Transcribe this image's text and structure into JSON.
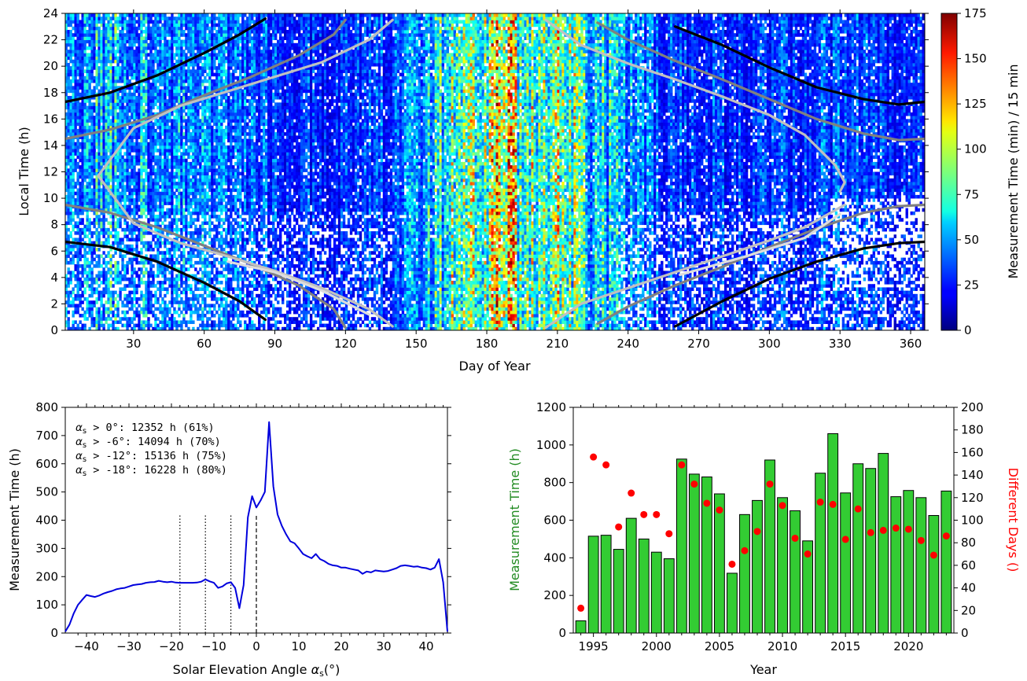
{
  "chart_data": [
    {
      "type": "heatmap",
      "xlabel": "Day of Year",
      "ylabel": "Local Time (h)",
      "xlim": [
        1,
        366
      ],
      "ylim": [
        0,
        24
      ],
      "xticks": [
        30,
        60,
        90,
        120,
        150,
        180,
        210,
        240,
        270,
        300,
        330,
        360
      ],
      "yticks": [
        0,
        2,
        4,
        6,
        8,
        10,
        12,
        14,
        16,
        18,
        20,
        22,
        24
      ],
      "colorbar": {
        "label": "Measurement Time (min) / 15 min",
        "range": [
          0,
          175
        ],
        "ticks": [
          0,
          25,
          50,
          75,
          100,
          125,
          150,
          175
        ],
        "colormap": "jet"
      },
      "activity_profile": {
        "day": [
          1,
          20,
          40,
          60,
          75,
          90,
          110,
          130,
          145,
          155,
          165,
          175,
          182,
          190,
          200,
          210,
          220,
          230,
          245,
          265,
          290,
          315,
          335,
          350,
          366
        ],
        "level": [
          45,
          55,
          42,
          45,
          40,
          30,
          28,
          30,
          35,
          62,
          70,
          75,
          100,
          95,
          78,
          82,
          70,
          55,
          38,
          30,
          28,
          32,
          33,
          28,
          25
        ]
      },
      "curves": [
        {
          "name": "sunset 0",
          "color": "#000000",
          "day": [
            1,
            20,
            40,
            60,
            75,
            86
          ],
          "hour": [
            17.3,
            18.0,
            19.3,
            21.0,
            22.4,
            23.6
          ]
        },
        {
          "name": "sunrise 0",
          "color": "#000000",
          "day": [
            1,
            20,
            40,
            60,
            75,
            86
          ],
          "hour": [
            6.7,
            6.3,
            5.2,
            3.6,
            2.2,
            0.8
          ]
        },
        {
          "name": "sunset 0 autumn",
          "color": "#000000",
          "day": [
            260,
            280,
            300,
            320,
            340,
            355,
            366
          ],
          "hour": [
            23.0,
            21.6,
            19.9,
            18.4,
            17.5,
            17.1,
            17.3
          ]
        },
        {
          "name": "sunrise 0 autumn",
          "color": "#000000",
          "day": [
            260,
            280,
            300,
            320,
            340,
            355,
            366
          ],
          "hour": [
            0.3,
            2.2,
            3.9,
            5.2,
            6.2,
            6.6,
            6.7
          ]
        },
        {
          "name": "sunset -6",
          "color": "#808080",
          "day": [
            1,
            20,
            40,
            60,
            80,
            100,
            115,
            120
          ],
          "hour": [
            14.5,
            15.2,
            16.3,
            17.8,
            19.2,
            20.8,
            22.4,
            23.5
          ]
        },
        {
          "name": "sunrise -6",
          "color": "#808080",
          "day": [
            1,
            20,
            40,
            60,
            80,
            100,
            115,
            120
          ],
          "hour": [
            9.5,
            8.9,
            7.8,
            6.4,
            5.0,
            3.4,
            1.6,
            0.2
          ]
        },
        {
          "name": "sunset -6 autumn",
          "color": "#808080",
          "day": [
            227,
            240,
            260,
            280,
            300,
            320,
            340,
            355,
            366
          ],
          "hour": [
            23.3,
            22.0,
            20.4,
            19.0,
            17.5,
            16.0,
            14.9,
            14.4,
            14.5
          ]
        },
        {
          "name": "sunrise -6 autumn",
          "color": "#808080",
          "day": [
            227,
            240,
            260,
            280,
            300,
            320,
            340,
            355,
            366
          ],
          "hour": [
            0.5,
            1.8,
            3.4,
            4.8,
            6.3,
            7.7,
            8.9,
            9.4,
            9.5
          ]
        },
        {
          "name": "twilight -12",
          "color": "#c0c0c0",
          "day": [
            140,
            130,
            110,
            90,
            70,
            50,
            30,
            15,
            30,
            50,
            70,
            90,
            110,
            130,
            140
          ],
          "hour": [
            23.5,
            22.0,
            20.3,
            19.2,
            18.1,
            17.0,
            15.3,
            11.7,
            8.1,
            6.6,
            5.6,
            4.5,
            3.2,
            1.6,
            0.3
          ]
        },
        {
          "name": "twilight -12 autumn",
          "color": "#c0c0c0",
          "day": [
            205,
            220,
            240,
            260,
            280,
            300,
            315,
            328,
            332,
            330
          ],
          "hour": [
            23.5,
            21.6,
            20.2,
            19.0,
            17.7,
            16.3,
            14.8,
            12.5,
            11.2,
            10.5
          ]
        },
        {
          "name": "twilight -12 autumn low",
          "color": "#c0c0c0",
          "day": [
            205,
            220,
            240,
            260,
            280,
            300,
            315,
            332
          ],
          "hour": [
            0.2,
            2.0,
            3.2,
            4.4,
            5.6,
            6.8,
            7.8,
            9.5
          ]
        },
        {
          "name": "twilight -18 low",
          "color": "#dcdcdc",
          "day": [
            70,
            90,
            110,
            130
          ],
          "hour": [
            5.2,
            4.4,
            3.0,
            1.2
          ]
        },
        {
          "name": "twilight -18 autumn",
          "color": "#dcdcdc",
          "day": [
            262,
            290,
            315,
            330
          ],
          "hour": [
            4.2,
            5.6,
            7.0,
            8.8
          ]
        }
      ]
    },
    {
      "type": "line",
      "xlabel": "Solar Elevation Angle",
      "xlabel_symbol": "α",
      "xlabel_sub": "s",
      "xlabel_unit": "(°)",
      "ylabel": "Measurement Time (h)",
      "xlim": [
        -45,
        45
      ],
      "ylim": [
        0,
        800
      ],
      "xticks": [
        -40,
        -30,
        -20,
        -10,
        0,
        10,
        20,
        30,
        40
      ],
      "yticks": [
        0,
        100,
        200,
        300,
        400,
        500,
        600,
        700,
        800
      ],
      "series": [
        {
          "color": "#0000dd",
          "x": [
            -45,
            -44,
            -43,
            -42,
            -41,
            -40,
            -39,
            -38,
            -37,
            -36,
            -35,
            -34,
            -33,
            -32,
            -31,
            -30,
            -29,
            -28,
            -27,
            -26,
            -25,
            -24,
            -23,
            -22,
            -21,
            -20,
            -19,
            -18,
            -17,
            -16,
            -15,
            -14,
            -13,
            -12,
            -11,
            -10,
            -9,
            -8,
            -7,
            -6,
            -5,
            -4,
            -3,
            -2,
            -1,
            0,
            1,
            2,
            3,
            4,
            5,
            6,
            7,
            8,
            9,
            10,
            11,
            12,
            13,
            14,
            15,
            16,
            17,
            18,
            19,
            20,
            21,
            22,
            23,
            24,
            25,
            26,
            27,
            28,
            29,
            30,
            31,
            32,
            33,
            34,
            35,
            36,
            37,
            38,
            39,
            40,
            41,
            42,
            43,
            44,
            45
          ],
          "y": [
            5,
            30,
            70,
            100,
            118,
            135,
            131,
            128,
            133,
            140,
            145,
            149,
            155,
            158,
            160,
            165,
            170,
            172,
            174,
            178,
            180,
            181,
            185,
            182,
            180,
            182,
            179,
            178,
            178,
            178,
            178,
            179,
            182,
            190,
            183,
            178,
            160,
            165,
            176,
            180,
            160,
            88,
            170,
            410,
            485,
            445,
            470,
            500,
            748,
            520,
            420,
            380,
            350,
            325,
            318,
            300,
            280,
            272,
            265,
            280,
            262,
            255,
            245,
            240,
            238,
            232,
            232,
            228,
            225,
            222,
            210,
            218,
            215,
            222,
            220,
            218,
            220,
            225,
            230,
            238,
            240,
            238,
            235,
            236,
            232,
            230,
            225,
            232,
            262,
            180,
            5
          ]
        }
      ],
      "vlines": [
        {
          "x": -18,
          "style": "dotted"
        },
        {
          "x": -12,
          "style": "dotted"
        },
        {
          "x": -6,
          "style": "dotted"
        },
        {
          "x": 0,
          "style": "dashed"
        }
      ],
      "annotations": [
        {
          "threshold": ">   0°",
          "value": ": 12352 h (61%)"
        },
        {
          "threshold": ">  -6°",
          "value": ": 14094 h (70%)"
        },
        {
          "threshold": "> -12°",
          "value": ": 15136 h (75%)"
        },
        {
          "threshold": "> -18°",
          "value": ": 16228 h (80%)"
        }
      ],
      "annotation_symbol": "α",
      "annotation_sub": "s"
    },
    {
      "type": "bar",
      "xlabel": "Year",
      "ylabel_left": "Measurement Time (h)",
      "ylabel_right": "Different Days ()",
      "ylabel_left_color": "#228B22",
      "ylabel_right_color": "#ff0000",
      "xlim": [
        1993.4,
        2023.6
      ],
      "ylim_left": [
        0,
        1200
      ],
      "ylim_right": [
        0,
        200
      ],
      "xticks": [
        1995,
        2000,
        2005,
        2010,
        2015,
        2020
      ],
      "yticks_left": [
        0,
        200,
        400,
        600,
        800,
        1000,
        1200
      ],
      "yticks_right": [
        0,
        20,
        40,
        60,
        80,
        100,
        120,
        140,
        160,
        180,
        200
      ],
      "categories": [
        1994,
        1995,
        1996,
        1997,
        1998,
        1999,
        2000,
        2001,
        2002,
        2003,
        2004,
        2005,
        2006,
        2007,
        2008,
        2009,
        2010,
        2011,
        2012,
        2013,
        2014,
        2015,
        2016,
        2017,
        2018,
        2019,
        2020,
        2021,
        2022,
        2023
      ],
      "series": [
        {
          "type": "bar",
          "axis": "left",
          "color": "#33cc33",
          "values": [
            65,
            515,
            520,
            445,
            610,
            500,
            430,
            395,
            925,
            845,
            830,
            740,
            318,
            630,
            705,
            920,
            720,
            650,
            490,
            850,
            1060,
            745,
            900,
            875,
            955,
            725,
            758,
            720,
            625,
            755
          ]
        },
        {
          "type": "scatter",
          "axis": "right",
          "color": "#ff0000",
          "values": [
            22,
            156,
            149,
            94,
            124,
            105,
            105,
            88,
            149,
            132,
            115,
            109,
            61,
            73,
            90,
            132,
            113,
            84,
            70,
            116,
            114,
            83,
            110,
            89,
            91,
            93,
            92,
            82,
            69,
            86
          ]
        }
      ]
    }
  ]
}
